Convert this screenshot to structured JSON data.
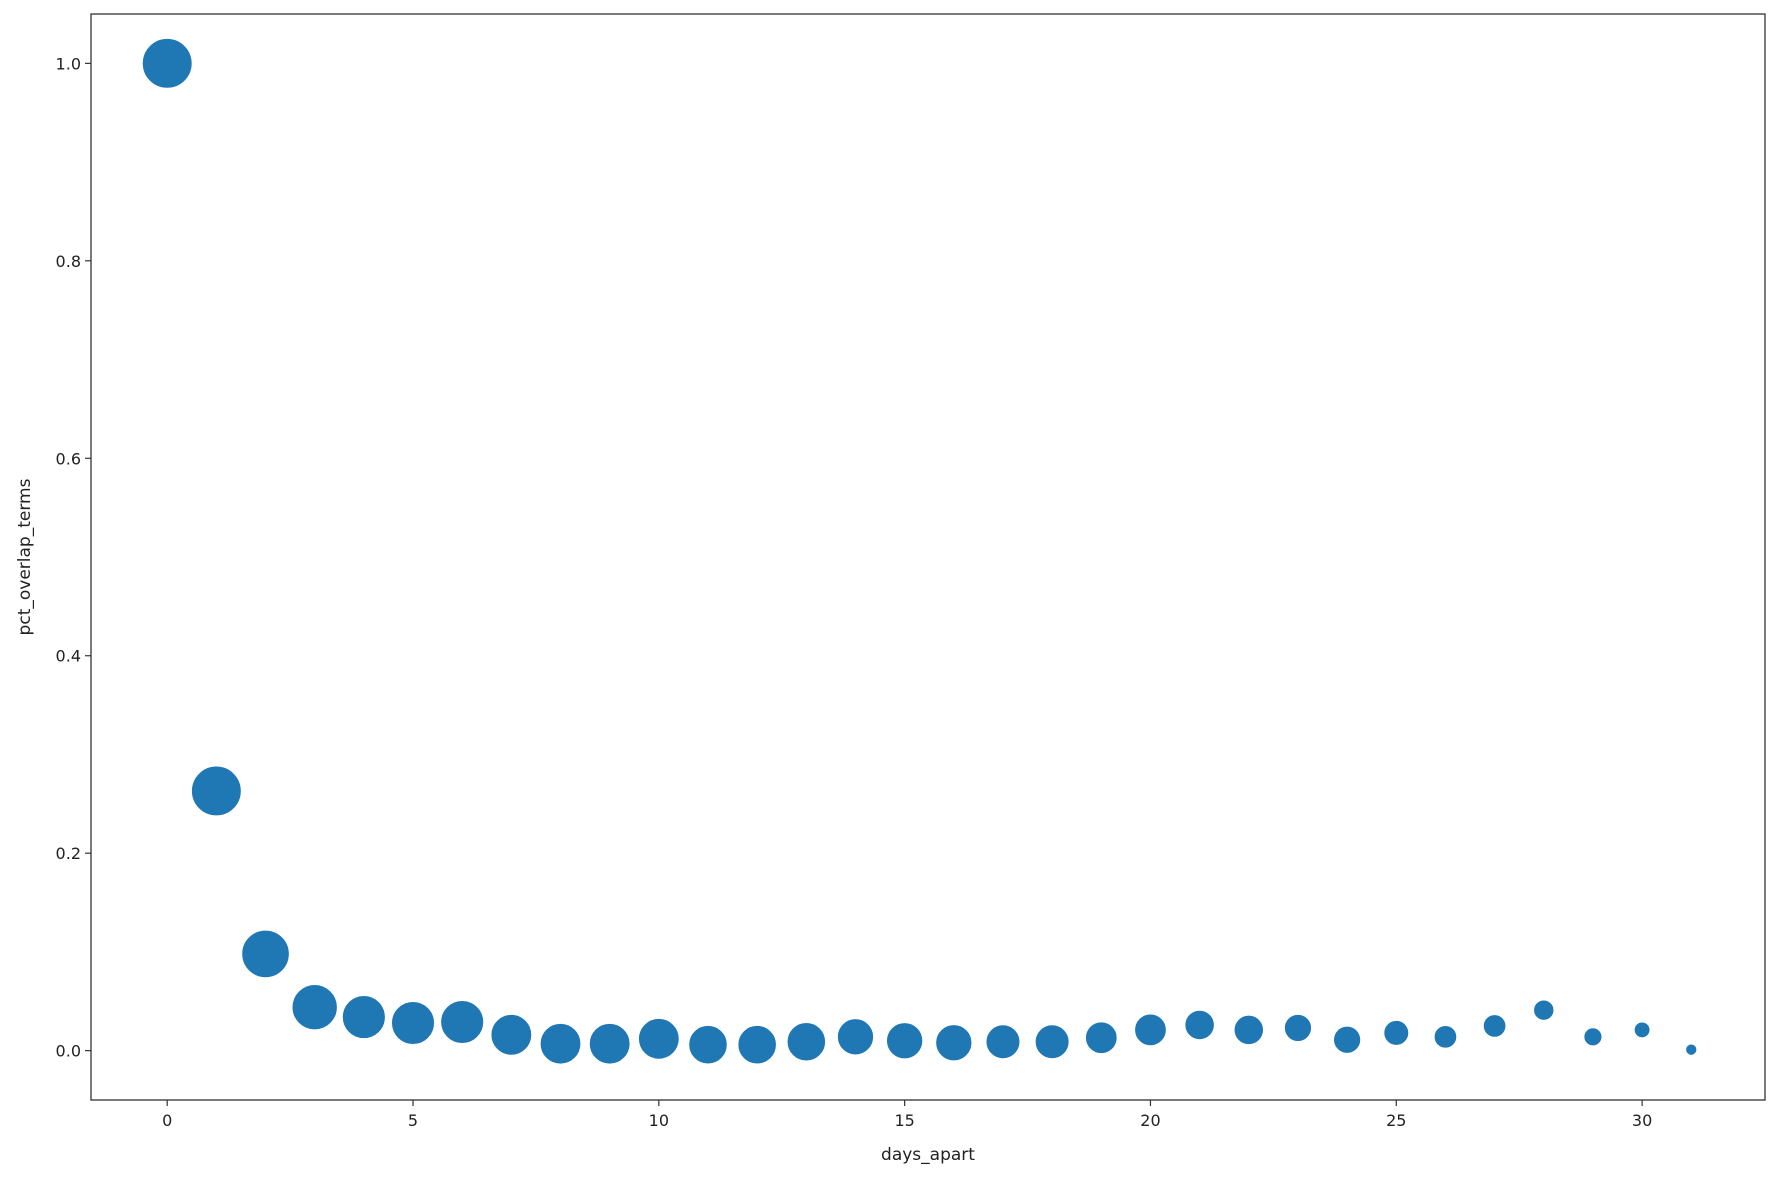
{
  "chart_data": {
    "type": "scatter",
    "title": "",
    "xlabel": "days_apart",
    "ylabel": "pct_overlap_terms",
    "xlim": [
      -1.55,
      32.5
    ],
    "ylim": [
      -0.05,
      1.05
    ],
    "xticks": [
      "0",
      "5",
      "10",
      "15",
      "20",
      "25",
      "30"
    ],
    "yticks": [
      "0.0",
      "0.2",
      "0.4",
      "0.6",
      "0.8",
      "1.0"
    ],
    "grid": false,
    "marker_color": "#1f77b4",
    "x": [
      0,
      1,
      2,
      3,
      4,
      5,
      6,
      7,
      8,
      9,
      10,
      11,
      12,
      13,
      14,
      15,
      16,
      17,
      18,
      19,
      20,
      21,
      22,
      23,
      24,
      25,
      26,
      27,
      28,
      29,
      30,
      31
    ],
    "y": [
      1.0,
      0.263,
      0.098,
      0.044,
      0.034,
      0.028,
      0.029,
      0.016,
      0.007,
      0.007,
      0.012,
      0.006,
      0.006,
      0.009,
      0.014,
      0.01,
      0.008,
      0.009,
      0.009,
      0.013,
      0.021,
      0.026,
      0.021,
      0.023,
      0.011,
      0.018,
      0.014,
      0.025,
      0.041,
      0.014,
      0.021,
      0.001
    ],
    "marker_size_relative": [
      22,
      22,
      21,
      20,
      19,
      19,
      19,
      18,
      18,
      18,
      18,
      17,
      17,
      17,
      16,
      16,
      16,
      15,
      15,
      14,
      14,
      13,
      13,
      12,
      12,
      11,
      10,
      10,
      9,
      8,
      7,
      5
    ]
  }
}
